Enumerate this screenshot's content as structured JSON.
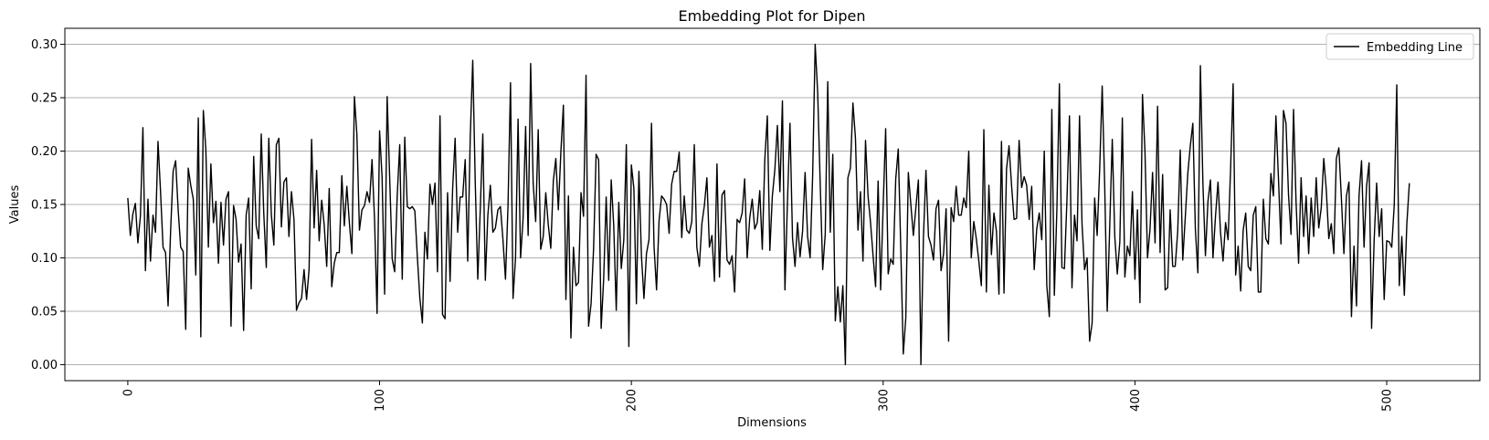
{
  "chart_data": {
    "type": "line",
    "title": "Embedding Plot for Dipen",
    "xlabel": "Dimensions",
    "ylabel": "Values",
    "xlim": [
      -25,
      537
    ],
    "ylim": [
      -0.015,
      0.315
    ],
    "xticks": [
      0,
      100,
      200,
      300,
      400,
      500
    ],
    "xtick_labels": [
      "0",
      "100",
      "200",
      "300",
      "400",
      "500"
    ],
    "yticks": [
      0.0,
      0.05,
      0.1,
      0.15,
      0.2,
      0.25,
      0.3
    ],
    "ytick_labels": [
      "0.00",
      "0.05",
      "0.10",
      "0.15",
      "0.20",
      "0.25",
      "0.30"
    ],
    "xtick_rotation": 90,
    "grid": "horizontal",
    "legend": {
      "position": "top-right"
    },
    "series": [
      {
        "name": "Embedding Line",
        "color": "#000000",
        "x_start": 0,
        "x_step": 1,
        "values": [
          0.156,
          0.121,
          0.141,
          0.151,
          0.114,
          0.139,
          0.222,
          0.088,
          0.155,
          0.097,
          0.14,
          0.124,
          0.209,
          0.162,
          0.11,
          0.105,
          0.055,
          0.125,
          0.181,
          0.191,
          0.145,
          0.11,
          0.106,
          0.033,
          0.184,
          0.168,
          0.155,
          0.084,
          0.231,
          0.026,
          0.238,
          0.201,
          0.11,
          0.188,
          0.133,
          0.153,
          0.095,
          0.152,
          0.112,
          0.155,
          0.162,
          0.036,
          0.149,
          0.136,
          0.096,
          0.113,
          0.032,
          0.14,
          0.156,
          0.071,
          0.195,
          0.13,
          0.118,
          0.216,
          0.142,
          0.091,
          0.212,
          0.141,
          0.112,
          0.206,
          0.212,
          0.129,
          0.171,
          0.175,
          0.12,
          0.162,
          0.136,
          0.051,
          0.058,
          0.062,
          0.089,
          0.061,
          0.089,
          0.211,
          0.128,
          0.182,
          0.116,
          0.154,
          0.131,
          0.092,
          0.165,
          0.073,
          0.095,
          0.105,
          0.105,
          0.177,
          0.13,
          0.167,
          0.133,
          0.104,
          0.251,
          0.215,
          0.126,
          0.145,
          0.149,
          0.162,
          0.152,
          0.192,
          0.136,
          0.048,
          0.219,
          0.175,
          0.066,
          0.251,
          0.176,
          0.099,
          0.087,
          0.158,
          0.206,
          0.08,
          0.213,
          0.148,
          0.146,
          0.148,
          0.144,
          0.101,
          0.062,
          0.039,
          0.124,
          0.099,
          0.169,
          0.15,
          0.17,
          0.087,
          0.233,
          0.047,
          0.043,
          0.161,
          0.078,
          0.164,
          0.212,
          0.124,
          0.157,
          0.157,
          0.192,
          0.097,
          0.212,
          0.285,
          0.17,
          0.08,
          0.146,
          0.216,
          0.079,
          0.14,
          0.168,
          0.124,
          0.128,
          0.145,
          0.148,
          0.117,
          0.08,
          0.148,
          0.264,
          0.062,
          0.1,
          0.23,
          0.1,
          0.137,
          0.223,
          0.121,
          0.282,
          0.17,
          0.134,
          0.22,
          0.108,
          0.12,
          0.161,
          0.131,
          0.109,
          0.172,
          0.193,
          0.145,
          0.199,
          0.243,
          0.061,
          0.158,
          0.025,
          0.11,
          0.074,
          0.077,
          0.161,
          0.139,
          0.271,
          0.036,
          0.057,
          0.109,
          0.197,
          0.192,
          0.034,
          0.08,
          0.157,
          0.079,
          0.173,
          0.13,
          0.051,
          0.152,
          0.09,
          0.117,
          0.206,
          0.017,
          0.187,
          0.165,
          0.057,
          0.181,
          0.102,
          0.062,
          0.104,
          0.117,
          0.226,
          0.111,
          0.07,
          0.135,
          0.158,
          0.155,
          0.15,
          0.123,
          0.169,
          0.181,
          0.181,
          0.199,
          0.119,
          0.158,
          0.126,
          0.123,
          0.134,
          0.206,
          0.11,
          0.092,
          0.132,
          0.149,
          0.175,
          0.11,
          0.121,
          0.078,
          0.188,
          0.082,
          0.159,
          0.163,
          0.098,
          0.094,
          0.102,
          0.068,
          0.136,
          0.133,
          0.142,
          0.174,
          0.1,
          0.137,
          0.155,
          0.127,
          0.133,
          0.163,
          0.108,
          0.192,
          0.233,
          0.107,
          0.158,
          0.183,
          0.224,
          0.162,
          0.247,
          0.07,
          0.153,
          0.226,
          0.119,
          0.092,
          0.133,
          0.101,
          0.125,
          0.18,
          0.12,
          0.1,
          0.177,
          0.3,
          0.255,
          0.17,
          0.089,
          0.122,
          0.265,
          0.124,
          0.197,
          0.041,
          0.073,
          0.04,
          0.074,
          0.0,
          0.175,
          0.184,
          0.245,
          0.212,
          0.126,
          0.162,
          0.097,
          0.21,
          0.158,
          0.133,
          0.102,
          0.073,
          0.172,
          0.07,
          0.148,
          0.221,
          0.085,
          0.099,
          0.094,
          0.174,
          0.202,
          0.109,
          0.01,
          0.044,
          0.18,
          0.15,
          0.121,
          0.147,
          0.173,
          0.0,
          0.119,
          0.182,
          0.12,
          0.112,
          0.098,
          0.146,
          0.154,
          0.088,
          0.104,
          0.146,
          0.022,
          0.147,
          0.134,
          0.167,
          0.14,
          0.14,
          0.156,
          0.147,
          0.2,
          0.1,
          0.134,
          0.118,
          0.097,
          0.074,
          0.22,
          0.068,
          0.168,
          0.103,
          0.142,
          0.125,
          0.066,
          0.209,
          0.067,
          0.183,
          0.205,
          0.168,
          0.136,
          0.137,
          0.21,
          0.166,
          0.176,
          0.168,
          0.136,
          0.167,
          0.089,
          0.127,
          0.142,
          0.117,
          0.2,
          0.074,
          0.045,
          0.239,
          0.065,
          0.145,
          0.263,
          0.091,
          0.09,
          0.154,
          0.233,
          0.072,
          0.14,
          0.116,
          0.233,
          0.131,
          0.089,
          0.1,
          0.022,
          0.039,
          0.156,
          0.121,
          0.183,
          0.261,
          0.167,
          0.05,
          0.13,
          0.211,
          0.12,
          0.085,
          0.115,
          0.231,
          0.082,
          0.111,
          0.102,
          0.162,
          0.08,
          0.145,
          0.058,
          0.253,
          0.199,
          0.1,
          0.127,
          0.18,
          0.114,
          0.242,
          0.105,
          0.178,
          0.07,
          0.072,
          0.145,
          0.092,
          0.092,
          0.125,
          0.201,
          0.098,
          0.138,
          0.179,
          0.205,
          0.226,
          0.127,
          0.086,
          0.28,
          0.17,
          0.102,
          0.153,
          0.173,
          0.1,
          0.139,
          0.171,
          0.124,
          0.097,
          0.133,
          0.117,
          0.183,
          0.263,
          0.084,
          0.111,
          0.069,
          0.126,
          0.142,
          0.092,
          0.088,
          0.14,
          0.148,
          0.068,
          0.068,
          0.155,
          0.118,
          0.113,
          0.179,
          0.158,
          0.233,
          0.175,
          0.113,
          0.238,
          0.226,
          0.159,
          0.122,
          0.239,
          0.152,
          0.095,
          0.175,
          0.12,
          0.158,
          0.104,
          0.156,
          0.12,
          0.175,
          0.128,
          0.147,
          0.193,
          0.164,
          0.118,
          0.132,
          0.104,
          0.193,
          0.203,
          0.156,
          0.104,
          0.158,
          0.171,
          0.045,
          0.111,
          0.055,
          0.158,
          0.191,
          0.11,
          0.167,
          0.189,
          0.034,
          0.116,
          0.17,
          0.12,
          0.146,
          0.061,
          0.116,
          0.115,
          0.11,
          0.15,
          0.262,
          0.074,
          0.12,
          0.065,
          0.132,
          0.17
        ]
      }
    ]
  }
}
